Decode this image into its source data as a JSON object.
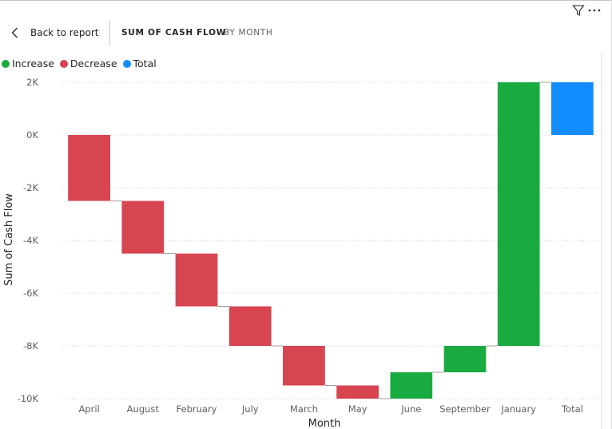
{
  "header": {
    "back_label": "Back to report",
    "crumb_main": "SUM OF CASH FLOW",
    "crumb_sub": "BY MONTH",
    "icons": [
      "chevron-left-icon",
      "filter-icon",
      "more-options-icon"
    ]
  },
  "legend": [
    {
      "label": "Increase",
      "color": "#1aab40"
    },
    {
      "label": "Decrease",
      "color": "#d64550"
    },
    {
      "label": "Total",
      "color": "#118dff"
    }
  ],
  "chart_data": {
    "type": "waterfall",
    "xlabel": "Month",
    "ylabel": "Sum of Cash Flow",
    "ylim": [
      -10000,
      2000
    ],
    "yticks": [
      2000,
      0,
      -2000,
      -4000,
      -6000,
      -8000,
      -10000
    ],
    "ytick_labels": [
      "2K",
      "0K",
      "-2K",
      "-4K",
      "-6K",
      "-8K",
      "-10K"
    ],
    "grid": true,
    "legend_position": "top-left",
    "categories": [
      "April",
      "August",
      "February",
      "July",
      "March",
      "May",
      "June",
      "September",
      "January",
      "Total"
    ],
    "values": [
      -2500,
      -2000,
      -2000,
      -1500,
      -1500,
      -500,
      1000,
      1000,
      10000,
      2000
    ],
    "kinds": [
      "decrease",
      "decrease",
      "decrease",
      "decrease",
      "decrease",
      "decrease",
      "increase",
      "increase",
      "increase",
      "total"
    ]
  }
}
